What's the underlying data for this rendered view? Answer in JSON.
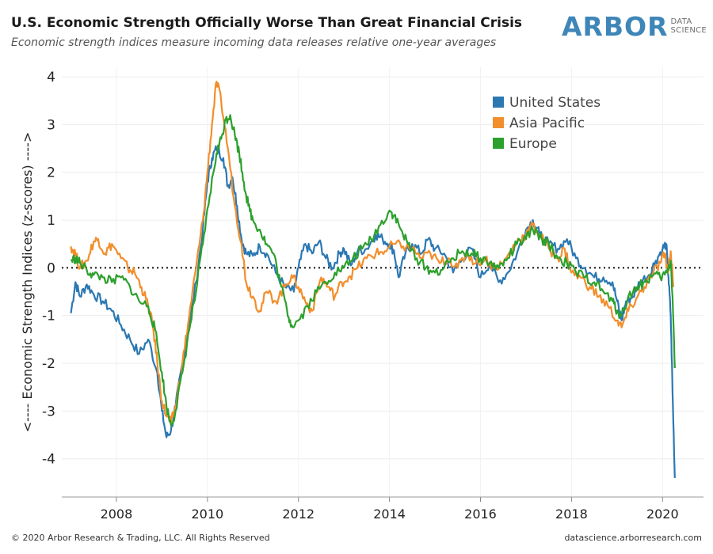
{
  "header": {
    "title": "U.S. Economic Strength Officially Worse Than Great Financial Crisis",
    "subtitle": "Economic strength indices measure incoming data releases relative one-year averages"
  },
  "logo": {
    "word": "ARBOR",
    "sub_line1": "DATA",
    "sub_line2": "SCIENCE"
  },
  "footer": {
    "copyright": "© 2020 Arbor Research & Trading, LLC. All Rights Reserved",
    "site": "datascience.arborresearch.com"
  },
  "chart_data": {
    "type": "line",
    "ylabel": "<---- Economic Strength Indices (z-scores) ---->",
    "xlim": [
      2006.8,
      2020.9
    ],
    "ylim": [
      -4.8,
      4.2
    ],
    "xticks": [
      2008,
      2010,
      2012,
      2014,
      2016,
      2018,
      2020
    ],
    "yticks": [
      4,
      3,
      2,
      1,
      0,
      -1,
      -2,
      -3,
      -4
    ],
    "zero_line": "dotted",
    "legend_position": "top-right",
    "series": [
      {
        "name": "United States",
        "color": "#2b78b3",
        "points": [
          [
            2007.0,
            -0.95
          ],
          [
            2007.1,
            -0.3
          ],
          [
            2007.2,
            -0.6
          ],
          [
            2007.35,
            -0.35
          ],
          [
            2007.5,
            -0.55
          ],
          [
            2007.7,
            -0.7
          ],
          [
            2007.9,
            -0.9
          ],
          [
            2008.1,
            -1.2
          ],
          [
            2008.3,
            -1.5
          ],
          [
            2008.5,
            -1.8
          ],
          [
            2008.7,
            -1.5
          ],
          [
            2008.9,
            -2.2
          ],
          [
            2009.0,
            -3.0
          ],
          [
            2009.1,
            -3.55
          ],
          [
            2009.2,
            -3.4
          ],
          [
            2009.3,
            -2.9
          ],
          [
            2009.45,
            -2.0
          ],
          [
            2009.6,
            -1.2
          ],
          [
            2009.75,
            -0.3
          ],
          [
            2009.9,
            0.8
          ],
          [
            2010.0,
            1.8
          ],
          [
            2010.1,
            2.3
          ],
          [
            2010.2,
            2.5
          ],
          [
            2010.35,
            2.3
          ],
          [
            2010.45,
            1.7
          ],
          [
            2010.55,
            1.9
          ],
          [
            2010.65,
            1.3
          ],
          [
            2010.75,
            0.6
          ],
          [
            2010.85,
            0.3
          ],
          [
            2011.0,
            0.25
          ],
          [
            2011.15,
            0.45
          ],
          [
            2011.3,
            0.3
          ],
          [
            2011.5,
            -0.1
          ],
          [
            2011.7,
            -0.4
          ],
          [
            2011.9,
            -0.5
          ],
          [
            2012.0,
            0.0
          ],
          [
            2012.15,
            0.5
          ],
          [
            2012.3,
            0.3
          ],
          [
            2012.45,
            0.55
          ],
          [
            2012.6,
            0.2
          ],
          [
            2012.75,
            0.0
          ],
          [
            2012.9,
            0.3
          ],
          [
            2013.0,
            0.4
          ],
          [
            2013.15,
            0.05
          ],
          [
            2013.3,
            0.35
          ],
          [
            2013.5,
            0.4
          ],
          [
            2013.7,
            0.7
          ],
          [
            2013.85,
            0.6
          ],
          [
            2014.0,
            0.5
          ],
          [
            2014.1,
            0.35
          ],
          [
            2014.2,
            -0.2
          ],
          [
            2014.35,
            0.3
          ],
          [
            2014.5,
            0.5
          ],
          [
            2014.7,
            0.3
          ],
          [
            2014.85,
            0.6
          ],
          [
            2015.0,
            0.4
          ],
          [
            2015.2,
            0.3
          ],
          [
            2015.4,
            -0.1
          ],
          [
            2015.6,
            0.2
          ],
          [
            2015.8,
            0.4
          ],
          [
            2016.0,
            -0.2
          ],
          [
            2016.2,
            0.1
          ],
          [
            2016.4,
            -0.3
          ],
          [
            2016.6,
            -0.1
          ],
          [
            2016.8,
            0.3
          ],
          [
            2017.0,
            0.8
          ],
          [
            2017.15,
            1.0
          ],
          [
            2017.3,
            0.7
          ],
          [
            2017.5,
            0.5
          ],
          [
            2017.7,
            0.4
          ],
          [
            2017.9,
            0.6
          ],
          [
            2018.1,
            0.2
          ],
          [
            2018.3,
            0.0
          ],
          [
            2018.5,
            -0.2
          ],
          [
            2018.7,
            -0.2
          ],
          [
            2018.9,
            -0.3
          ],
          [
            2019.0,
            -0.7
          ],
          [
            2019.1,
            -1.1
          ],
          [
            2019.2,
            -0.7
          ],
          [
            2019.35,
            -0.6
          ],
          [
            2019.5,
            -0.3
          ],
          [
            2019.7,
            -0.15
          ],
          [
            2019.85,
            0.15
          ],
          [
            2020.0,
            0.4
          ],
          [
            2020.08,
            0.5
          ],
          [
            2020.13,
            -0.2
          ],
          [
            2020.18,
            -1.0
          ],
          [
            2020.22,
            -2.6
          ],
          [
            2020.27,
            -4.4
          ]
        ]
      },
      {
        "name": "Asia Pacific",
        "color": "#f28e2b",
        "points": [
          [
            2007.0,
            0.45
          ],
          [
            2007.1,
            0.3
          ],
          [
            2007.2,
            0.0
          ],
          [
            2007.35,
            0.15
          ],
          [
            2007.5,
            0.55
          ],
          [
            2007.6,
            0.6
          ],
          [
            2007.75,
            0.3
          ],
          [
            2007.9,
            0.5
          ],
          [
            2008.1,
            0.2
          ],
          [
            2008.25,
            0.0
          ],
          [
            2008.4,
            -0.1
          ],
          [
            2008.55,
            -0.4
          ],
          [
            2008.7,
            -0.8
          ],
          [
            2008.8,
            -1.2
          ],
          [
            2008.9,
            -2.0
          ],
          [
            2009.0,
            -2.8
          ],
          [
            2009.1,
            -3.1
          ],
          [
            2009.2,
            -3.25
          ],
          [
            2009.3,
            -2.9
          ],
          [
            2009.45,
            -2.0
          ],
          [
            2009.6,
            -1.0
          ],
          [
            2009.75,
            0.0
          ],
          [
            2009.9,
            1.0
          ],
          [
            2010.0,
            2.0
          ],
          [
            2010.1,
            3.0
          ],
          [
            2010.2,
            3.9
          ],
          [
            2010.3,
            3.5
          ],
          [
            2010.45,
            2.5
          ],
          [
            2010.6,
            1.3
          ],
          [
            2010.75,
            0.5
          ],
          [
            2010.85,
            -0.3
          ],
          [
            2011.0,
            -0.6
          ],
          [
            2011.15,
            -0.9
          ],
          [
            2011.3,
            -0.5
          ],
          [
            2011.5,
            -0.7
          ],
          [
            2011.7,
            -0.4
          ],
          [
            2011.85,
            -0.15
          ],
          [
            2012.0,
            -0.4
          ],
          [
            2012.15,
            -0.7
          ],
          [
            2012.3,
            -0.9
          ],
          [
            2012.5,
            -0.2
          ],
          [
            2012.65,
            -0.4
          ],
          [
            2012.8,
            -0.6
          ],
          [
            2012.95,
            -0.3
          ],
          [
            2013.1,
            -0.2
          ],
          [
            2013.3,
            0.0
          ],
          [
            2013.5,
            0.2
          ],
          [
            2013.7,
            0.3
          ],
          [
            2013.9,
            0.35
          ],
          [
            2014.1,
            0.5
          ],
          [
            2014.3,
            0.45
          ],
          [
            2014.5,
            0.4
          ],
          [
            2014.7,
            0.2
          ],
          [
            2014.9,
            0.3
          ],
          [
            2015.1,
            0.1
          ],
          [
            2015.3,
            0.2
          ],
          [
            2015.5,
            0.0
          ],
          [
            2015.7,
            0.3
          ],
          [
            2015.9,
            0.1
          ],
          [
            2016.1,
            0.2
          ],
          [
            2016.3,
            0.0
          ],
          [
            2016.5,
            0.1
          ],
          [
            2016.7,
            0.4
          ],
          [
            2016.85,
            0.6
          ],
          [
            2017.0,
            0.7
          ],
          [
            2017.15,
            0.9
          ],
          [
            2017.3,
            0.7
          ],
          [
            2017.5,
            0.4
          ],
          [
            2017.7,
            0.2
          ],
          [
            2017.85,
            0.4
          ],
          [
            2018.0,
            -0.1
          ],
          [
            2018.2,
            -0.2
          ],
          [
            2018.4,
            -0.4
          ],
          [
            2018.6,
            -0.6
          ],
          [
            2018.8,
            -0.8
          ],
          [
            2019.0,
            -1.1
          ],
          [
            2019.1,
            -1.25
          ],
          [
            2019.25,
            -0.9
          ],
          [
            2019.45,
            -0.6
          ],
          [
            2019.6,
            -0.4
          ],
          [
            2019.8,
            -0.1
          ],
          [
            2019.95,
            0.1
          ],
          [
            2020.05,
            0.3
          ],
          [
            2020.12,
            -0.1
          ],
          [
            2020.18,
            0.35
          ],
          [
            2020.24,
            -0.4
          ]
        ]
      },
      {
        "name": "Europe",
        "color": "#2ca02c",
        "points": [
          [
            2007.0,
            0.15
          ],
          [
            2007.1,
            0.2
          ],
          [
            2007.2,
            0.1
          ],
          [
            2007.35,
            -0.05
          ],
          [
            2007.5,
            -0.15
          ],
          [
            2007.7,
            -0.2
          ],
          [
            2007.9,
            -0.3
          ],
          [
            2008.1,
            -0.2
          ],
          [
            2008.3,
            -0.4
          ],
          [
            2008.5,
            -0.7
          ],
          [
            2008.7,
            -0.8
          ],
          [
            2008.85,
            -1.3
          ],
          [
            2009.0,
            -2.2
          ],
          [
            2009.1,
            -2.9
          ],
          [
            2009.2,
            -3.3
          ],
          [
            2009.3,
            -3.0
          ],
          [
            2009.45,
            -2.2
          ],
          [
            2009.6,
            -1.3
          ],
          [
            2009.75,
            -0.5
          ],
          [
            2009.9,
            0.5
          ],
          [
            2010.05,
            1.5
          ],
          [
            2010.2,
            2.4
          ],
          [
            2010.3,
            2.7
          ],
          [
            2010.4,
            3.1
          ],
          [
            2010.5,
            3.2
          ],
          [
            2010.6,
            2.8
          ],
          [
            2010.7,
            2.4
          ],
          [
            2010.8,
            1.8
          ],
          [
            2010.9,
            1.3
          ],
          [
            2011.0,
            1.0
          ],
          [
            2011.15,
            0.8
          ],
          [
            2011.3,
            0.5
          ],
          [
            2011.45,
            0.3
          ],
          [
            2011.6,
            -0.3
          ],
          [
            2011.75,
            -0.9
          ],
          [
            2011.85,
            -1.2
          ],
          [
            2012.0,
            -1.1
          ],
          [
            2012.2,
            -0.8
          ],
          [
            2012.4,
            -0.5
          ],
          [
            2012.6,
            -0.3
          ],
          [
            2012.8,
            -0.1
          ],
          [
            2013.0,
            0.0
          ],
          [
            2013.2,
            0.2
          ],
          [
            2013.4,
            0.4
          ],
          [
            2013.6,
            0.6
          ],
          [
            2013.8,
            0.9
          ],
          [
            2014.0,
            1.2
          ],
          [
            2014.1,
            1.1
          ],
          [
            2014.25,
            0.8
          ],
          [
            2014.4,
            0.5
          ],
          [
            2014.6,
            0.2
          ],
          [
            2014.8,
            0.0
          ],
          [
            2015.0,
            -0.1
          ],
          [
            2015.2,
            0.0
          ],
          [
            2015.4,
            0.2
          ],
          [
            2015.6,
            0.35
          ],
          [
            2015.8,
            0.3
          ],
          [
            2016.0,
            0.2
          ],
          [
            2016.2,
            0.1
          ],
          [
            2016.4,
            0.0
          ],
          [
            2016.6,
            0.2
          ],
          [
            2016.8,
            0.5
          ],
          [
            2017.0,
            0.6
          ],
          [
            2017.15,
            0.8
          ],
          [
            2017.35,
            0.6
          ],
          [
            2017.5,
            0.5
          ],
          [
            2017.7,
            0.2
          ],
          [
            2017.9,
            0.1
          ],
          [
            2018.1,
            -0.1
          ],
          [
            2018.3,
            -0.2
          ],
          [
            2018.5,
            -0.3
          ],
          [
            2018.7,
            -0.5
          ],
          [
            2018.9,
            -0.7
          ],
          [
            2019.0,
            -0.9
          ],
          [
            2019.1,
            -1.0
          ],
          [
            2019.25,
            -0.6
          ],
          [
            2019.45,
            -0.4
          ],
          [
            2019.6,
            -0.3
          ],
          [
            2019.8,
            -0.15
          ],
          [
            2019.95,
            -0.2
          ],
          [
            2020.1,
            -0.1
          ],
          [
            2020.18,
            0.15
          ],
          [
            2020.22,
            -0.6
          ],
          [
            2020.27,
            -2.1
          ]
        ]
      }
    ]
  }
}
